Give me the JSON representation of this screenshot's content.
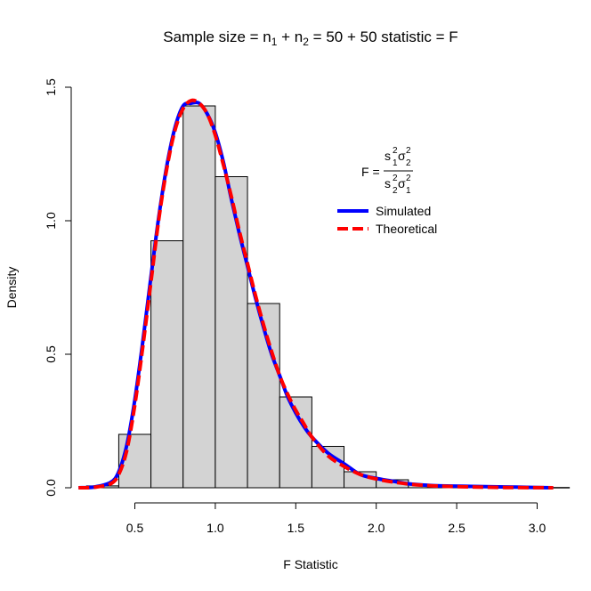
{
  "chart_data": {
    "type": "histogram",
    "title": {
      "prefix": "Sample size = n",
      "sub1": "1",
      "plus1": " + n",
      "sub2": "2",
      "middle": " = 50 + 50 statistic = F"
    },
    "xlabel": "F Statistic",
    "ylabel": "Density",
    "xlim": [
      0.1,
      3.12
    ],
    "ylim": [
      0,
      1.5
    ],
    "x_ticks": [
      {
        "value": 0.5,
        "label": "0.5"
      },
      {
        "value": 1.0,
        "label": "1.0"
      },
      {
        "value": 1.5,
        "label": "1.5"
      },
      {
        "value": 2.0,
        "label": "2.0"
      },
      {
        "value": 2.5,
        "label": "2.5"
      },
      {
        "value": 3.0,
        "label": "3.0"
      }
    ],
    "y_ticks": [
      {
        "value": 0.0,
        "label": "0.0"
      },
      {
        "value": 0.5,
        "label": "0.5"
      },
      {
        "value": 1.0,
        "label": "1.0"
      },
      {
        "value": 1.5,
        "label": "1.5"
      }
    ],
    "bins": [
      {
        "x0": 0.2,
        "x1": 0.4,
        "density": 0.007
      },
      {
        "x0": 0.4,
        "x1": 0.6,
        "density": 0.2
      },
      {
        "x0": 0.6,
        "x1": 0.8,
        "density": 0.925
      },
      {
        "x0": 0.8,
        "x1": 1.0,
        "density": 1.43
      },
      {
        "x0": 1.0,
        "x1": 1.2,
        "density": 1.165
      },
      {
        "x0": 1.2,
        "x1": 1.4,
        "density": 0.69
      },
      {
        "x0": 1.4,
        "x1": 1.6,
        "density": 0.34
      },
      {
        "x0": 1.6,
        "x1": 1.8,
        "density": 0.155
      },
      {
        "x0": 1.8,
        "x1": 2.0,
        "density": 0.06
      },
      {
        "x0": 2.0,
        "x1": 2.2,
        "density": 0.03
      },
      {
        "x0": 2.2,
        "x1": 2.4,
        "density": 0.01
      },
      {
        "x0": 2.4,
        "x1": 2.6,
        "density": 0.005
      },
      {
        "x0": 2.6,
        "x1": 2.8,
        "density": 0.003
      },
      {
        "x0": 2.8,
        "x1": 3.0,
        "density": 0.002
      },
      {
        "x0": 3.0,
        "x1": 3.2,
        "density": 0.001
      }
    ],
    "series": [
      {
        "name": "Simulated",
        "color": "#0000ff",
        "style": "solid",
        "x": [
          0.15,
          0.25,
          0.35,
          0.4,
          0.45,
          0.5,
          0.55,
          0.6,
          0.65,
          0.7,
          0.75,
          0.8,
          0.85,
          0.9,
          0.95,
          1.0,
          1.05,
          1.1,
          1.15,
          1.2,
          1.25,
          1.3,
          1.35,
          1.4,
          1.45,
          1.5,
          1.55,
          1.6,
          1.7,
          1.8,
          1.9,
          2.0,
          2.1,
          2.2,
          2.3,
          2.4,
          2.6,
          2.8,
          3.0,
          3.1
        ],
        "y": [
          0.0,
          0.003,
          0.02,
          0.06,
          0.16,
          0.33,
          0.55,
          0.79,
          1.02,
          1.21,
          1.35,
          1.43,
          1.44,
          1.44,
          1.4,
          1.33,
          1.22,
          1.08,
          0.95,
          0.83,
          0.71,
          0.6,
          0.5,
          0.42,
          0.34,
          0.28,
          0.23,
          0.19,
          0.13,
          0.09,
          0.05,
          0.035,
          0.025,
          0.015,
          0.01,
          0.007,
          0.005,
          0.003,
          0.001,
          0.0
        ]
      },
      {
        "name": "Theoretical",
        "color": "#ff0000",
        "style": "dashed",
        "x": [
          0.15,
          0.25,
          0.35,
          0.4,
          0.45,
          0.5,
          0.55,
          0.6,
          0.65,
          0.7,
          0.75,
          0.8,
          0.85,
          0.9,
          0.95,
          1.0,
          1.05,
          1.1,
          1.15,
          1.2,
          1.25,
          1.3,
          1.35,
          1.4,
          1.45,
          1.5,
          1.55,
          1.6,
          1.7,
          1.8,
          1.9,
          2.0,
          2.1,
          2.2,
          2.3,
          2.4,
          2.6,
          2.8,
          3.0,
          3.1
        ],
        "y": [
          0.0,
          0.002,
          0.015,
          0.05,
          0.14,
          0.31,
          0.53,
          0.77,
          1.01,
          1.2,
          1.34,
          1.42,
          1.45,
          1.44,
          1.4,
          1.32,
          1.21,
          1.09,
          0.96,
          0.84,
          0.72,
          0.61,
          0.51,
          0.42,
          0.35,
          0.29,
          0.24,
          0.19,
          0.12,
          0.08,
          0.05,
          0.033,
          0.022,
          0.014,
          0.009,
          0.006,
          0.003,
          0.001,
          0.0005,
          0.0
        ]
      }
    ],
    "legend": {
      "placement": "top-right",
      "formula": {
        "lhs": "F =",
        "num1": "s",
        "num1_sup": "2",
        "num1_sub": "1",
        "num2": "σ",
        "num2_sup": "2",
        "num2_sub": "2",
        "den1": "s",
        "den1_sup": "2",
        "den1_sub": "2",
        "den2": "σ",
        "den2_sup": "2",
        "den2_sub": "1"
      },
      "entries": [
        "Simulated",
        "Theoretical"
      ]
    },
    "grid": false
  }
}
